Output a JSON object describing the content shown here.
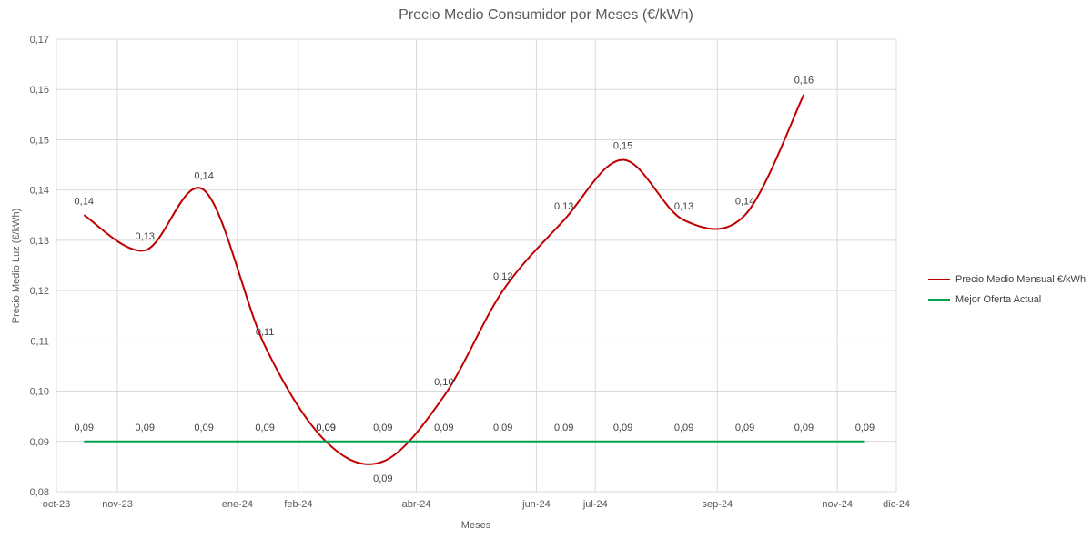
{
  "chart_data": {
    "type": "line",
    "title": "Precio Medio Consumidor por Meses (€/kWh)",
    "xlabel": "Meses",
    "ylabel": "Precio Medio Luz (€/kWh)",
    "x_ticks": [
      "oct-23",
      "nov-23",
      "ene-24",
      "feb-24",
      "abr-24",
      "jun-24",
      "jul-24",
      "sep-24",
      "nov-24",
      "dic-24"
    ],
    "x_range": [
      "2023-10-01",
      "2024-12-01"
    ],
    "ylim": [
      0.08,
      0.17
    ],
    "y_ticks": [
      "0,08",
      "0,09",
      "0,10",
      "0,11",
      "0,12",
      "0,13",
      "0,14",
      "0,15",
      "0,16",
      "0,17"
    ],
    "grid": true,
    "legend_position": "right",
    "series": [
      {
        "name": "Precio Medio Mensual €/kWh",
        "color": "#c00000",
        "smooth": true,
        "x": [
          "2023-10-15",
          "2023-11-15",
          "2023-12-15",
          "2024-01-15",
          "2024-02-15",
          "2024-03-15",
          "2024-04-15",
          "2024-05-15",
          "2024-06-15",
          "2024-07-15",
          "2024-08-15",
          "2024-09-15",
          "2024-10-15"
        ],
        "values": [
          0.135,
          0.128,
          0.14,
          0.109,
          0.09,
          0.086,
          0.099,
          0.12,
          0.134,
          0.146,
          0.134,
          0.135,
          0.159
        ],
        "labels": [
          "0,14",
          "0,13",
          "0,14",
          "0,11",
          "0,09",
          "0,09",
          "0,10",
          "0,12",
          "0,13",
          "0,15",
          "0,13",
          "0,14",
          "0,16"
        ]
      },
      {
        "name": "Mejor Oferta Actual",
        "color": "#00a050",
        "smooth": false,
        "x": [
          "2023-10-15",
          "2023-11-15",
          "2023-12-15",
          "2024-01-15",
          "2024-02-15",
          "2024-03-15",
          "2024-04-15",
          "2024-05-15",
          "2024-06-15",
          "2024-07-15",
          "2024-08-15",
          "2024-09-15",
          "2024-10-15",
          "2024-11-15"
        ],
        "values": [
          0.09,
          0.09,
          0.09,
          0.09,
          0.09,
          0.09,
          0.09,
          0.09,
          0.09,
          0.09,
          0.09,
          0.09,
          0.09,
          0.09
        ],
        "labels": [
          "0,09",
          "0,09",
          "0,09",
          "0,09",
          "0,09",
          "0,09",
          "0,09",
          "0,09",
          "0,09",
          "0,09",
          "0,09",
          "0,09",
          "0,09",
          "0,09"
        ]
      }
    ]
  },
  "colors": {
    "gridline": "#d9d9d9",
    "axis": "#bfbfbf"
  }
}
